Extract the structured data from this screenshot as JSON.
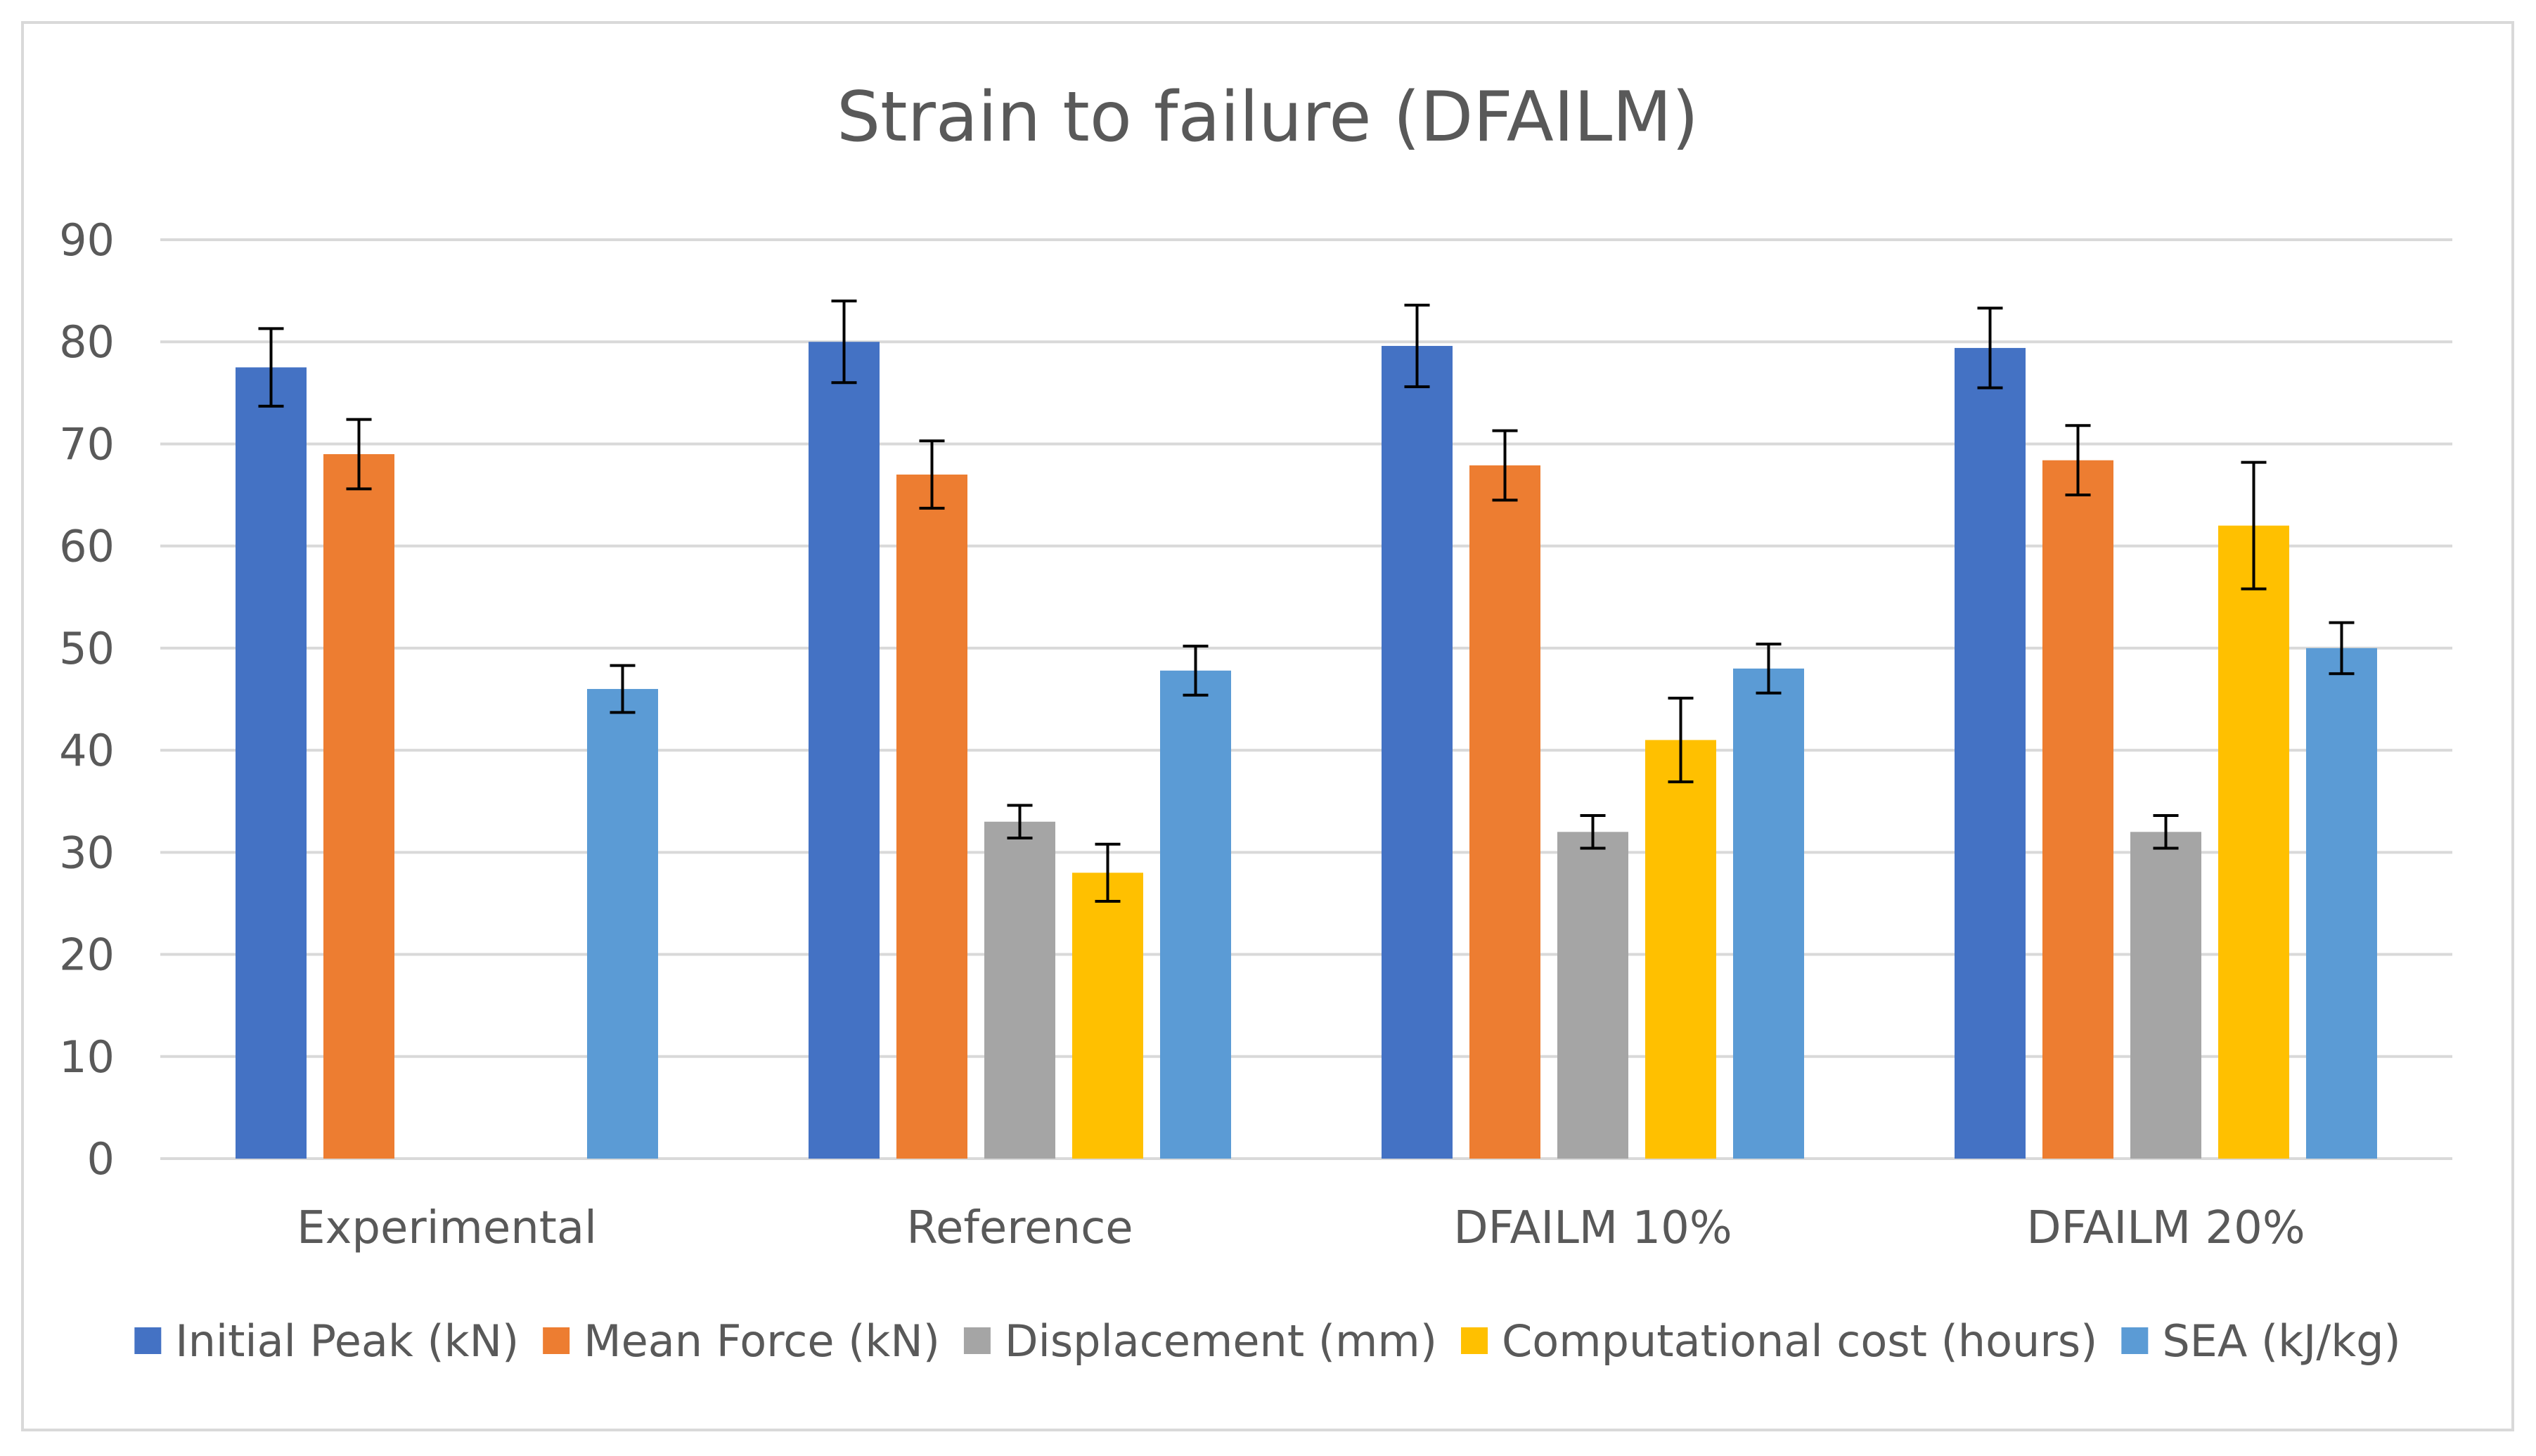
{
  "chart_data": {
    "type": "bar",
    "title": "Strain to failure (DFAILM)",
    "xlabel": "",
    "ylabel": "",
    "ylim": [
      0,
      90
    ],
    "yticks": [
      0,
      10,
      20,
      30,
      40,
      50,
      60,
      70,
      80,
      90
    ],
    "grid": true,
    "legend_position": "bottom",
    "categories": [
      "Experimental",
      "Reference",
      "DFAILM 10%",
      "DFAILM 20%"
    ],
    "series": [
      {
        "name": "Initial Peak (kN)",
        "color": "#4472C4",
        "values": [
          77.5,
          80,
          79.6,
          79.4
        ],
        "errors": [
          3.8,
          4.0,
          4.0,
          3.9
        ]
      },
      {
        "name": "Mean Force (kN)",
        "color": "#ED7D31",
        "values": [
          69,
          67,
          67.9,
          68.4
        ],
        "errors": [
          3.4,
          3.3,
          3.4,
          3.4
        ]
      },
      {
        "name": "Displacement (mm)",
        "color": "#A5A5A5",
        "values": [
          null,
          33,
          32,
          32
        ],
        "errors": [
          null,
          1.6,
          1.6,
          1.6
        ]
      },
      {
        "name": "Computational cost (hours)",
        "color": "#FFC000",
        "values": [
          null,
          28,
          41,
          62
        ],
        "errors": [
          null,
          2.8,
          4.1,
          6.2
        ]
      },
      {
        "name": "SEA (kJ/kg)",
        "color": "#5B9BD5",
        "values": [
          46,
          47.8,
          48,
          50
        ],
        "errors": [
          2.3,
          2.4,
          2.4,
          2.5
        ]
      }
    ]
  }
}
